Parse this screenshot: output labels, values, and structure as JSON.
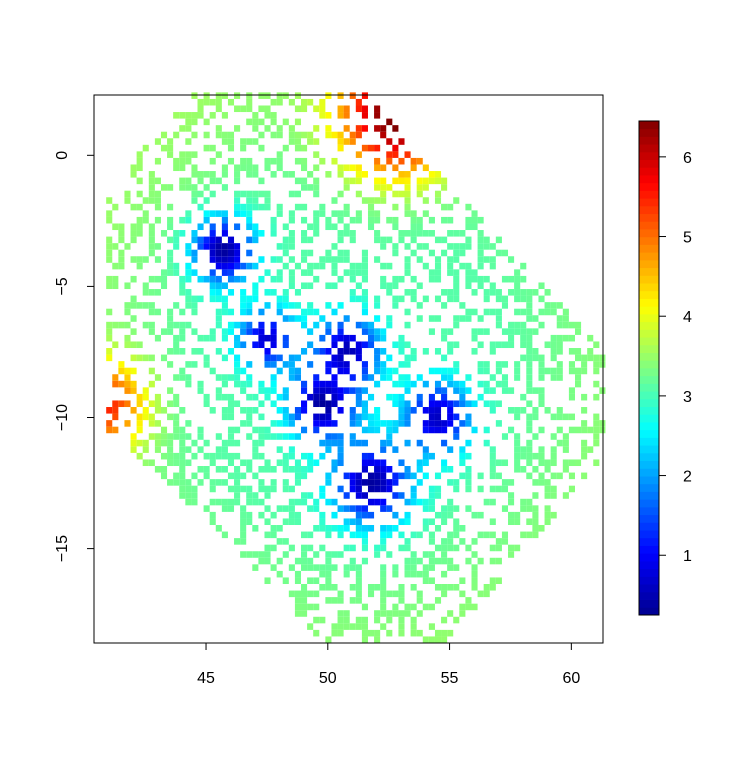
{
  "chart_data": {
    "type": "heatmap",
    "title": "",
    "xlabel": "",
    "ylabel": "",
    "xlim": [
      40.4,
      61.3
    ],
    "ylim": [
      -18.6,
      2.3
    ],
    "x_ticks": [
      45,
      50,
      55,
      60
    ],
    "x_tick_labels": [
      "45",
      "50",
      "55",
      "60"
    ],
    "y_ticks": [
      0,
      -5,
      -10,
      -15
    ],
    "y_tick_labels": [
      "0",
      "−5",
      "−10",
      "−15"
    ],
    "cell_size": 0.25,
    "color_scale": {
      "name": "jet",
      "min": 0.25,
      "max": 6.45,
      "ticks": [
        1,
        2,
        3,
        4,
        5,
        6
      ],
      "tick_labels": [
        "1",
        "2",
        "3",
        "4",
        "5",
        "6"
      ],
      "colors": [
        "#00008F",
        "#0000FF",
        "#0080FF",
        "#00FFFF",
        "#80FF80",
        "#FFFF00",
        "#FF8000",
        "#FF0000",
        "#800000"
      ]
    },
    "grid": false,
    "legend_position": "right",
    "value_field": {
      "description_of_pattern": "Low values (<1) form a dark blue cluster near (45.5,-3.5) and a ridge running from (49,-6) to (52,-15); values rise toward ~3 at the octagonal boundary; high values up to ~6.3 in the northeast corner (51-54, 0..2) and ~5 along the west edge near (41,-9).",
      "low_centers": [
        {
          "x": 45.7,
          "y": -3.6,
          "value": 0.3,
          "spread": 1.3
        },
        {
          "x": 49.8,
          "y": -9.5,
          "value": 0.3,
          "spread": 1.4
        },
        {
          "x": 51.8,
          "y": -12.5,
          "value": 0.35,
          "spread": 1.6
        },
        {
          "x": 50.8,
          "y": -7.5,
          "value": 0.5,
          "spread": 1.4
        },
        {
          "x": 54.5,
          "y": -10.0,
          "value": 0.6,
          "spread": 1.4
        },
        {
          "x": 47.5,
          "y": -7.0,
          "value": 0.7,
          "spread": 1.2
        }
      ],
      "high_centers": [
        {
          "x": 52.8,
          "y": 1.5,
          "value": 6.4,
          "spread": 1.8
        },
        {
          "x": 40.9,
          "y": -9.5,
          "value": 5.2,
          "spread": 1.3
        }
      ],
      "background_value": 3.1
    },
    "domain_octagon": [
      [
        44.4,
        2.3
      ],
      [
        51.6,
        2.3
      ],
      [
        58.8,
        -4.8
      ],
      [
        61.3,
        -7.3
      ],
      [
        61.3,
        -11.5
      ],
      [
        54.9,
        -18.6
      ],
      [
        49.9,
        -18.6
      ],
      [
        43.4,
        -12.4
      ],
      [
        40.8,
        -10.6
      ],
      [
        40.8,
        -1.5
      ]
    ]
  }
}
